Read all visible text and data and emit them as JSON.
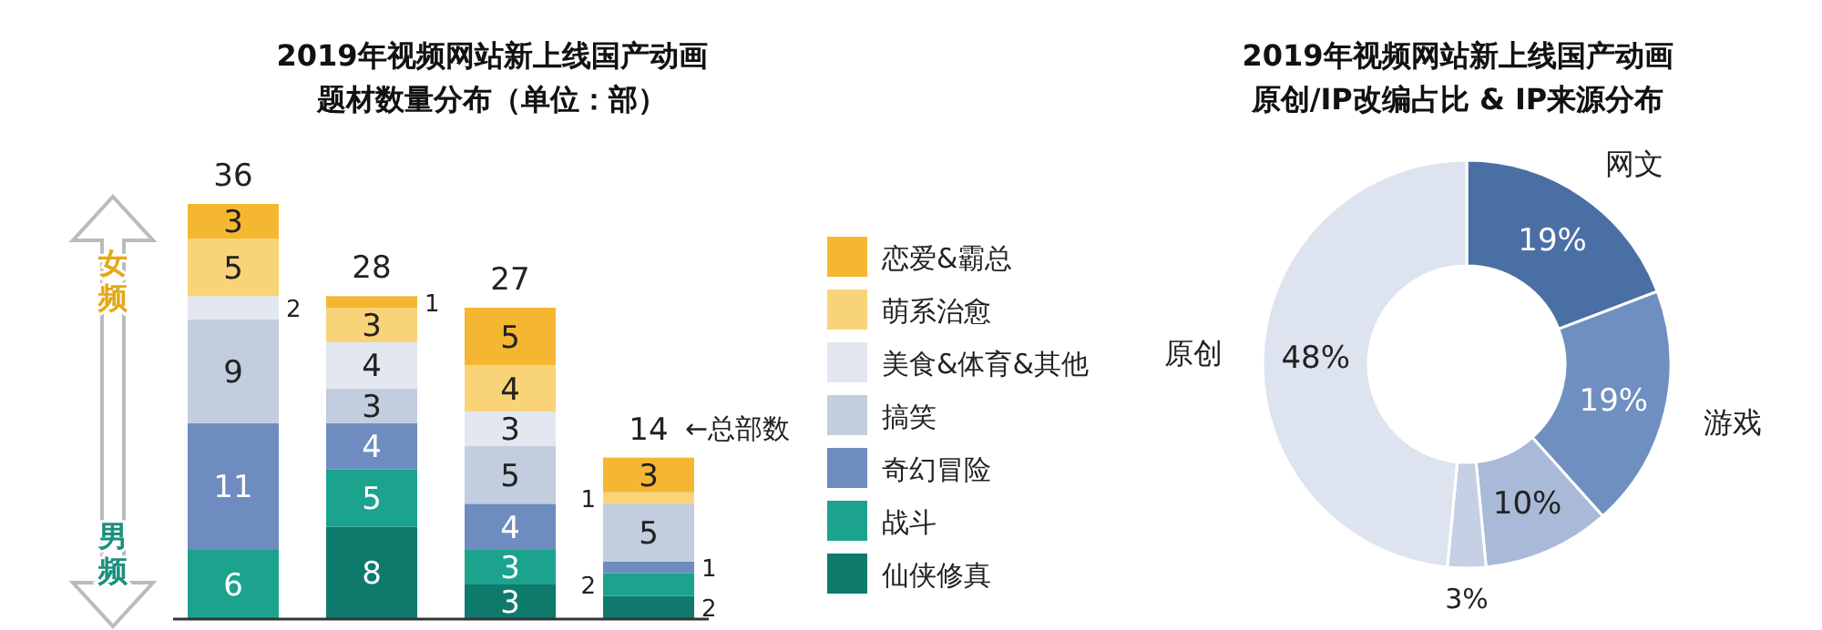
{
  "chart_data": [
    {
      "type": "bar",
      "title": "2019年视频网站新上线国产动画题材数量分布（单位：部）",
      "stacked": true,
      "categories": [
        null,
        null,
        null,
        null
      ],
      "data_labels": true,
      "legend": "right",
      "totals": [
        "36",
        "28",
        "27",
        "14"
      ],
      "annotations": [
        "←总部数",
        "女频",
        "男频"
      ],
      "series": [
        {
          "name": "仙侠修真",
          "color": "#0e7a6c",
          "values": [
            null,
            8,
            3,
            2
          ]
        },
        {
          "name": "战斗",
          "color": "#1ba38e",
          "values": [
            6,
            5,
            3,
            2
          ]
        },
        {
          "name": "奇幻冒险",
          "color": "#6e8cbf",
          "values": [
            11,
            4,
            4,
            1
          ]
        },
        {
          "name": "搞笑",
          "color": "#c3cde0",
          "values": [
            9,
            3,
            5,
            5
          ]
        },
        {
          "name": "美食&体育&其他",
          "color": "#e2e7f0",
          "values": [
            2,
            4,
            3,
            null
          ]
        },
        {
          "name": "萌系治愈",
          "color": "#f9d378",
          "values": [
            5,
            3,
            4,
            1
          ]
        },
        {
          "name": "恋爱&霸总",
          "color": "#f5b731",
          "values": [
            3,
            1,
            5,
            3
          ]
        }
      ]
    },
    {
      "type": "donut",
      "title": "2019年视频网站新上线国产动画原创/IP改编占比 & IP来源分布",
      "categories": [
        "网文",
        "游戏",
        null,
        null,
        "原创"
      ],
      "values": [
        19,
        19,
        10,
        3,
        48
      ],
      "value_labels": [
        "19%",
        "19%",
        "10%",
        "3%",
        "48%"
      ],
      "colors": [
        "#4a6fa5",
        "#6f8fc0",
        "#a9bad8",
        "#c5d0e4",
        "#dde3ef"
      ]
    }
  ]
}
